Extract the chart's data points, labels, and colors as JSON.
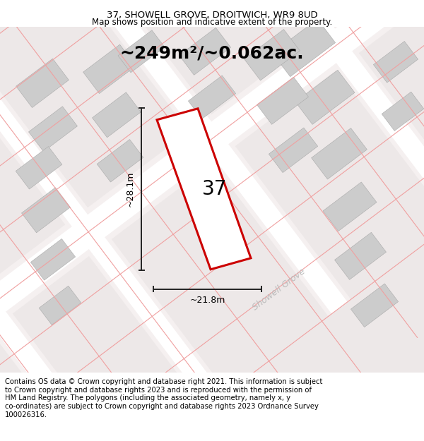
{
  "title": "37, SHOWELL GROVE, DROITWICH, WR9 8UD",
  "subtitle": "Map shows position and indicative extent of the property.",
  "area_text": "~249m²/~0.062ac.",
  "width_label": "~21.8m",
  "height_label": "~28.1m",
  "number_label": "37",
  "street_label": "Showell Grove",
  "plot_outline_color": "#cc0000",
  "plot_fill_color": "#ffffff",
  "dim_line_color": "#222222",
  "footer_text": "Contains OS data © Crown copyright and database right 2021. This information is subject\nto Crown copyright and database rights 2023 and is reproduced with the permission of\nHM Land Registry. The polygons (including the associated geometry, namely x, y\nco-ordinates) are subject to Crown copyright and database rights 2023 Ordnance Survey\n100026316.",
  "title_fontsize": 9.5,
  "subtitle_fontsize": 8.5,
  "area_fontsize": 18,
  "number_fontsize": 20,
  "street_fontsize": 9,
  "footer_fontsize": 7.2,
  "dim_label_fontsize": 9
}
